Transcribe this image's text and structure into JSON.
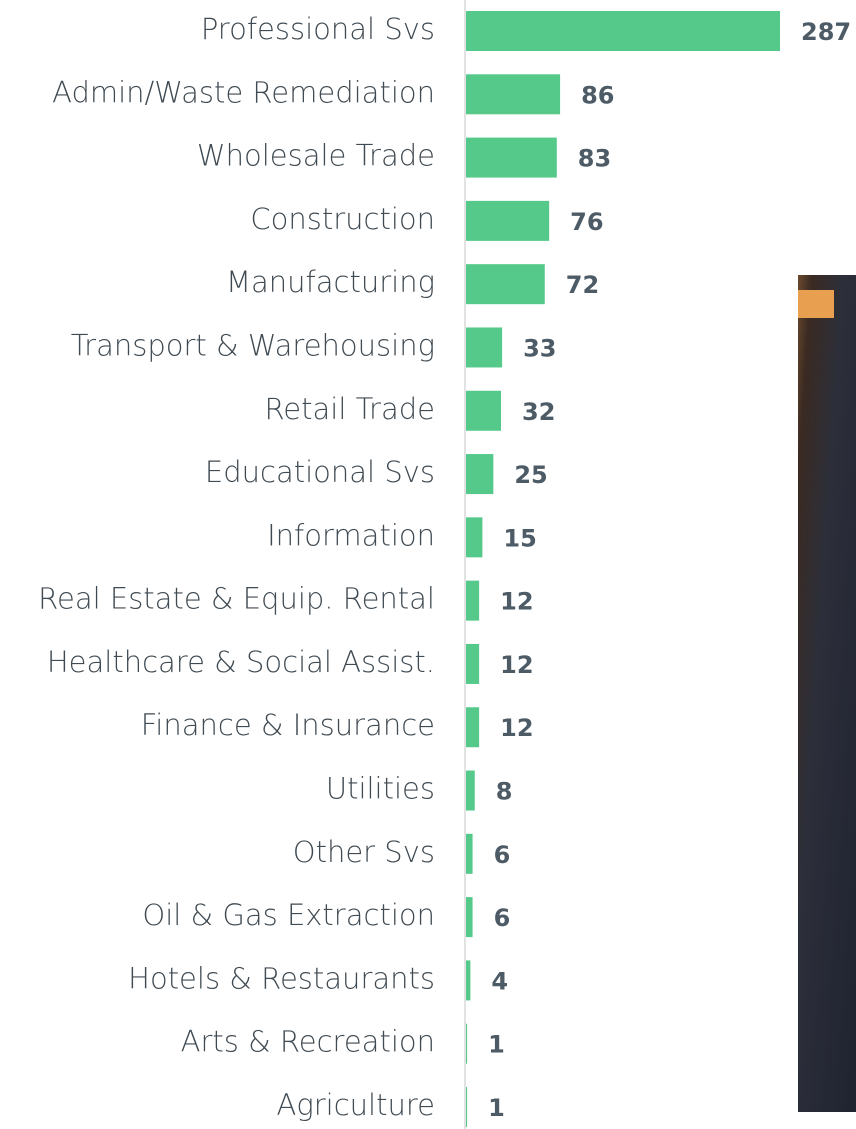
{
  "chart_data": {
    "type": "bar",
    "orientation": "horizontal",
    "color": "#55c98a",
    "categories": [
      "Professional Svs",
      "Admin/Waste Remediation",
      "Wholesale Trade",
      "Construction",
      "Manufacturing",
      "Transport & Warehousing",
      "Retail Trade",
      "Educational Svs",
      "Information",
      "Real Estate & Equip. Rental",
      "Healthcare & Social Assist.",
      "Finance & Insurance",
      "Utilities",
      "Other Svs",
      "Oil & Gas Extraction",
      "Hotels & Restaurants",
      "Arts & Recreation",
      "Agriculture"
    ],
    "values": [
      287,
      86,
      83,
      76,
      72,
      33,
      32,
      25,
      15,
      12,
      12,
      12,
      8,
      6,
      6,
      4,
      1,
      1
    ]
  }
}
